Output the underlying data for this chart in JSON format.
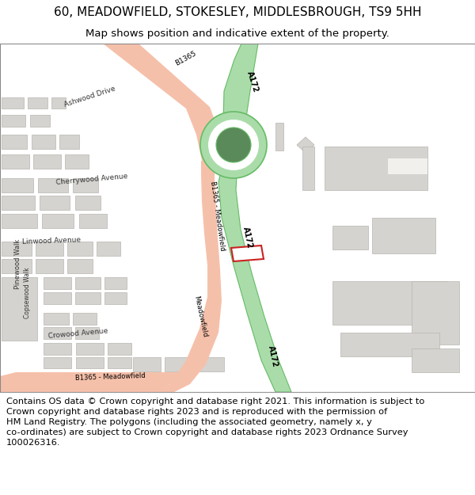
{
  "title": "60, MEADOWFIELD, STOKESLEY, MIDDLESBROUGH, TS9 5HH",
  "subtitle": "Map shows position and indicative extent of the property.",
  "footer": "Contains OS data © Crown copyright and database right 2021. This information is subject to\nCrown copyright and database rights 2023 and is reproduced with the permission of\nHM Land Registry. The polygons (including the associated geometry, namely x, y\nco-ordinates) are subject to Crown copyright and database rights 2023 Ordnance Survey\n100026316.",
  "bg_color": "#ffffff",
  "map_bg": "#f2f0ec",
  "road_a172_color": "#aadcaa",
  "road_a172_outline": "#66bb66",
  "road_b1365_color": "#f5c0aa",
  "road_b1365_outline": "#e8a090",
  "roundabout_outer_color": "#aadcaa",
  "roundabout_outer_outline": "#66bb66",
  "roundabout_white": "#ffffff",
  "roundabout_inner_color": "#5a8a5a",
  "building_color": "#d5d3cf",
  "building_outline": "#b8b5b0",
  "highlight_color": "#cc2222",
  "title_fontsize": 11,
  "subtitle_fontsize": 9.5,
  "footer_fontsize": 8.2
}
